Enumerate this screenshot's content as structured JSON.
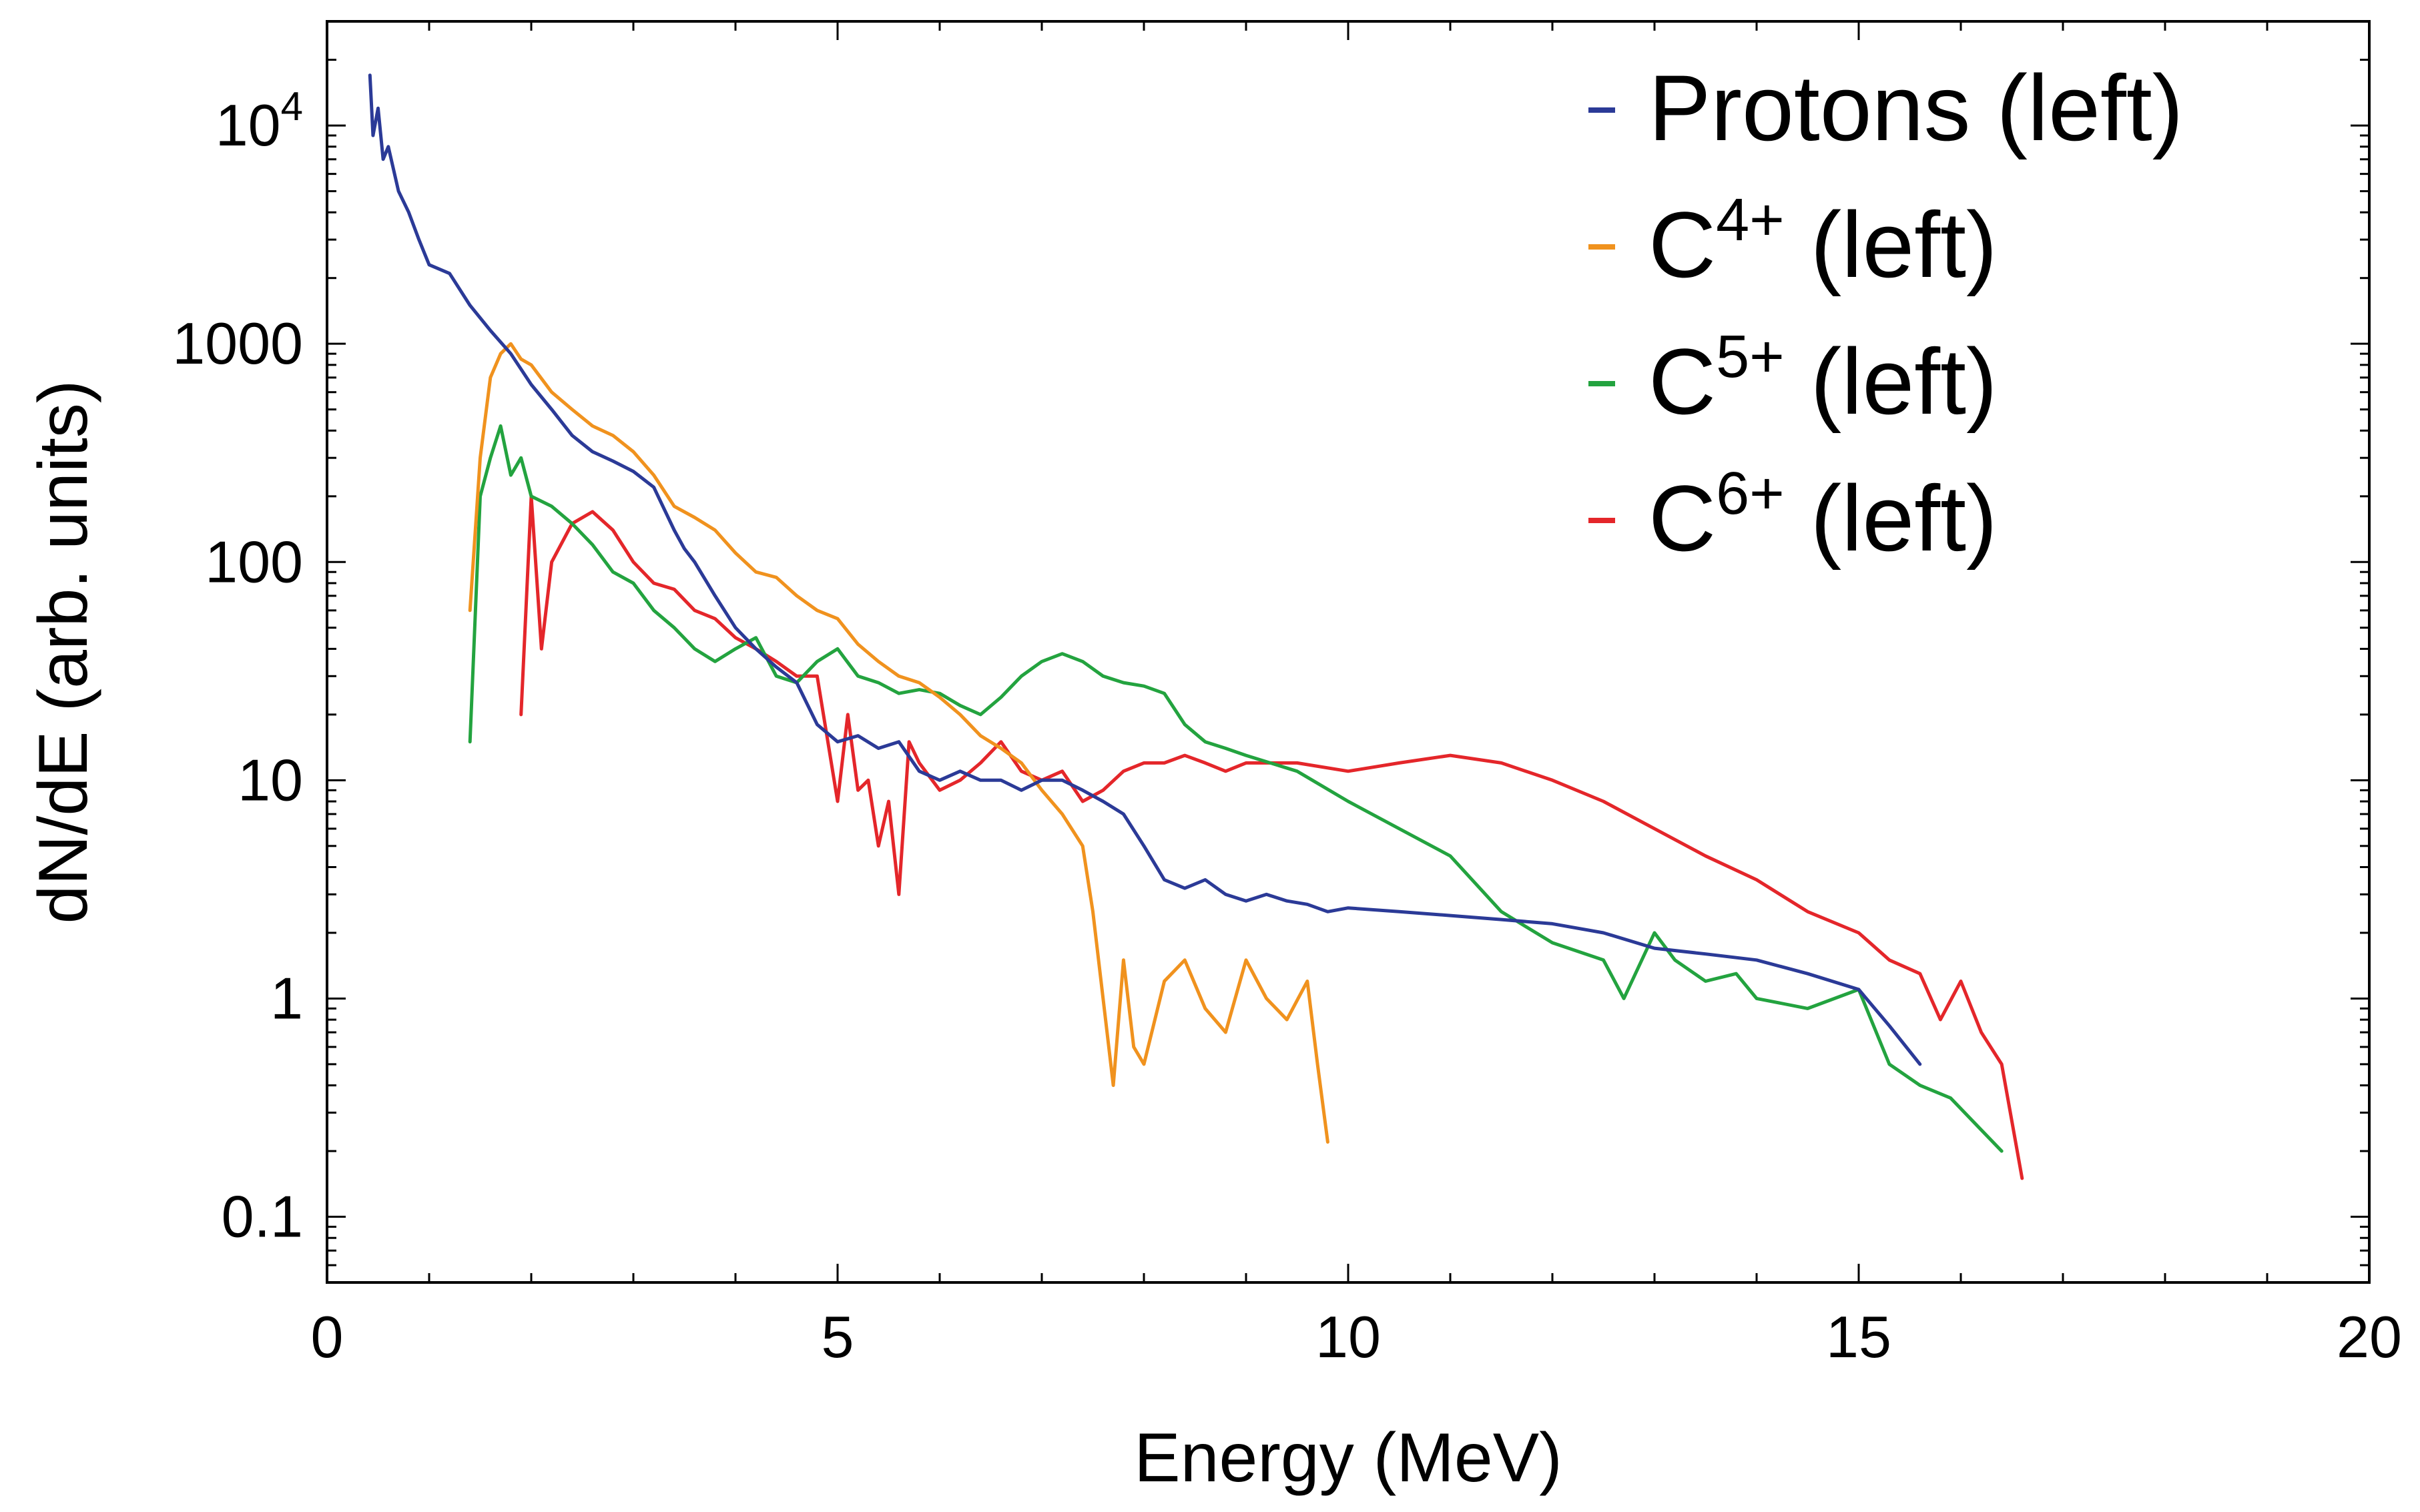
{
  "chart_data": {
    "type": "line",
    "title": "",
    "xlabel": "Energy (MeV)",
    "ylabel": "dN/dE (arb. units)",
    "xlim": [
      0,
      20
    ],
    "ylim": [
      0.05,
      30000
    ],
    "yscale": "log",
    "x_ticks": [
      {
        "value": 0,
        "label": "0"
      },
      {
        "value": 5,
        "label": "5"
      },
      {
        "value": 10,
        "label": "10"
      },
      {
        "value": 15,
        "label": "15"
      },
      {
        "value": 20,
        "label": "20"
      }
    ],
    "y_ticks": [
      {
        "value": 0.1,
        "label": "0.1"
      },
      {
        "value": 1,
        "label": "1"
      },
      {
        "value": 10,
        "label": "10"
      },
      {
        "value": 100,
        "label": "100"
      },
      {
        "value": 1000,
        "label": "1000"
      },
      {
        "value": 10000,
        "label": "10",
        "exp": "4"
      }
    ],
    "legend_position": "top-right",
    "series": [
      {
        "name": "Protons (left)",
        "legend_base": "Protons (left)",
        "color": "#2b3a97",
        "x": [
          0.42,
          0.45,
          0.5,
          0.55,
          0.6,
          0.7,
          0.8,
          0.9,
          1.0,
          1.2,
          1.4,
          1.6,
          1.8,
          2.0,
          2.2,
          2.4,
          2.6,
          2.8,
          3.0,
          3.2,
          3.4,
          3.5,
          3.6,
          3.8,
          4.0,
          4.2,
          4.4,
          4.6,
          4.8,
          5.0,
          5.2,
          5.4,
          5.6,
          5.8,
          6.0,
          6.2,
          6.4,
          6.6,
          6.8,
          7.0,
          7.2,
          7.4,
          7.6,
          7.8,
          8.0,
          8.2,
          8.4,
          8.6,
          8.8,
          9.0,
          9.2,
          9.4,
          9.6,
          9.8,
          10.0,
          10.5,
          11.0,
          11.5,
          12.0,
          12.5,
          13.0,
          13.5,
          14.0,
          14.5,
          15.0,
          15.3,
          15.6
        ],
        "y": [
          17000,
          9000,
          12000,
          7000,
          8000,
          5000,
          4000,
          3000,
          2300,
          2100,
          1500,
          1150,
          900,
          650,
          500,
          380,
          320,
          290,
          260,
          220,
          140,
          115,
          100,
          70,
          50,
          40,
          33,
          28,
          18,
          15,
          16,
          14,
          15,
          11,
          10,
          11,
          10,
          10,
          9,
          10,
          10,
          9,
          8,
          7,
          5,
          3.5,
          3.2,
          3.5,
          3.0,
          2.8,
          3.0,
          2.8,
          2.7,
          2.5,
          2.6,
          2.5,
          2.4,
          2.3,
          2.2,
          2.0,
          1.7,
          1.6,
          1.5,
          1.3,
          1.1,
          0.75,
          0.5
        ]
      },
      {
        "name": "C4+ (left)",
        "legend_base": "C",
        "legend_sup": "4+",
        "color": "#f0921e",
        "x": [
          1.4,
          1.5,
          1.6,
          1.7,
          1.8,
          1.9,
          2.0,
          2.2,
          2.4,
          2.6,
          2.8,
          3.0,
          3.2,
          3.4,
          3.6,
          3.8,
          4.0,
          4.2,
          4.4,
          4.6,
          4.8,
          5.0,
          5.2,
          5.4,
          5.6,
          5.8,
          6.0,
          6.2,
          6.4,
          6.6,
          6.8,
          7.0,
          7.2,
          7.4,
          7.5,
          7.6,
          7.7,
          7.8,
          7.9,
          8.0,
          8.2,
          8.4,
          8.6,
          8.8,
          9.0,
          9.2,
          9.4,
          9.6,
          9.7,
          9.8
        ],
        "y": [
          60,
          300,
          700,
          900,
          1000,
          850,
          800,
          600,
          500,
          420,
          380,
          320,
          250,
          180,
          160,
          140,
          110,
          90,
          85,
          70,
          60,
          55,
          42,
          35,
          30,
          28,
          24,
          20,
          16,
          14,
          12,
          9,
          7,
          5,
          2.5,
          1.0,
          0.4,
          1.5,
          0.6,
          0.5,
          1.2,
          1.5,
          0.9,
          0.7,
          1.5,
          1.0,
          0.8,
          1.2,
          0.5,
          0.22
        ]
      },
      {
        "name": "C5+ (left)",
        "legend_base": "C",
        "legend_sup": "5+",
        "color": "#23a33f",
        "x": [
          1.4,
          1.5,
          1.6,
          1.7,
          1.8,
          1.9,
          2.0,
          2.2,
          2.4,
          2.6,
          2.8,
          3.0,
          3.2,
          3.4,
          3.6,
          3.8,
          4.0,
          4.2,
          4.4,
          4.6,
          4.8,
          5.0,
          5.2,
          5.4,
          5.6,
          5.8,
          6.0,
          6.2,
          6.4,
          6.6,
          6.8,
          7.0,
          7.2,
          7.4,
          7.6,
          7.8,
          8.0,
          8.2,
          8.4,
          8.6,
          8.8,
          9.0,
          9.5,
          10.0,
          10.5,
          11.0,
          11.5,
          12.0,
          12.5,
          12.7,
          13.0,
          13.2,
          13.5,
          13.8,
          14.0,
          14.5,
          15.0,
          15.3,
          15.6,
          15.9,
          16.2,
          16.4
        ],
        "y": [
          15,
          200,
          300,
          420,
          250,
          300,
          200,
          180,
          150,
          120,
          90,
          80,
          60,
          50,
          40,
          35,
          40,
          45,
          30,
          28,
          35,
          40,
          30,
          28,
          25,
          26,
          25,
          22,
          20,
          24,
          30,
          35,
          38,
          35,
          30,
          28,
          27,
          25,
          18,
          15,
          14,
          13,
          11,
          8,
          6,
          4.5,
          2.5,
          1.8,
          1.5,
          1.0,
          2.0,
          1.5,
          1.2,
          1.3,
          1.0,
          0.9,
          1.1,
          0.5,
          0.4,
          0.35,
          0.25,
          0.2
        ]
      },
      {
        "name": "C6+ (left)",
        "legend_base": "C",
        "legend_sup": "6+",
        "color": "#e4262a",
        "x": [
          1.9,
          2.0,
          2.1,
          2.2,
          2.4,
          2.6,
          2.8,
          3.0,
          3.2,
          3.4,
          3.6,
          3.8,
          4.0,
          4.2,
          4.4,
          4.6,
          4.8,
          5.0,
          5.1,
          5.2,
          5.3,
          5.4,
          5.5,
          5.6,
          5.7,
          5.8,
          6.0,
          6.2,
          6.4,
          6.6,
          6.8,
          7.0,
          7.2,
          7.4,
          7.6,
          7.8,
          8.0,
          8.2,
          8.4,
          8.6,
          8.8,
          9.0,
          9.5,
          10.0,
          10.5,
          11.0,
          11.5,
          12.0,
          12.5,
          13.0,
          13.5,
          14.0,
          14.5,
          15.0,
          15.3,
          15.6,
          15.8,
          16.0,
          16.2,
          16.4,
          16.6
        ],
        "y": [
          20,
          200,
          40,
          100,
          150,
          170,
          140,
          100,
          80,
          75,
          60,
          55,
          45,
          40,
          35,
          30,
          30,
          8,
          20,
          9,
          10,
          5,
          8,
          3,
          15,
          12,
          9,
          10,
          12,
          15,
          11,
          10,
          11,
          8,
          9,
          11,
          12,
          12,
          13,
          12,
          11,
          12,
          12,
          11,
          12,
          13,
          12,
          10,
          8,
          6,
          4.5,
          3.5,
          2.5,
          2.0,
          1.5,
          1.3,
          0.8,
          1.2,
          0.7,
          0.5,
          0.15
        ]
      }
    ]
  }
}
